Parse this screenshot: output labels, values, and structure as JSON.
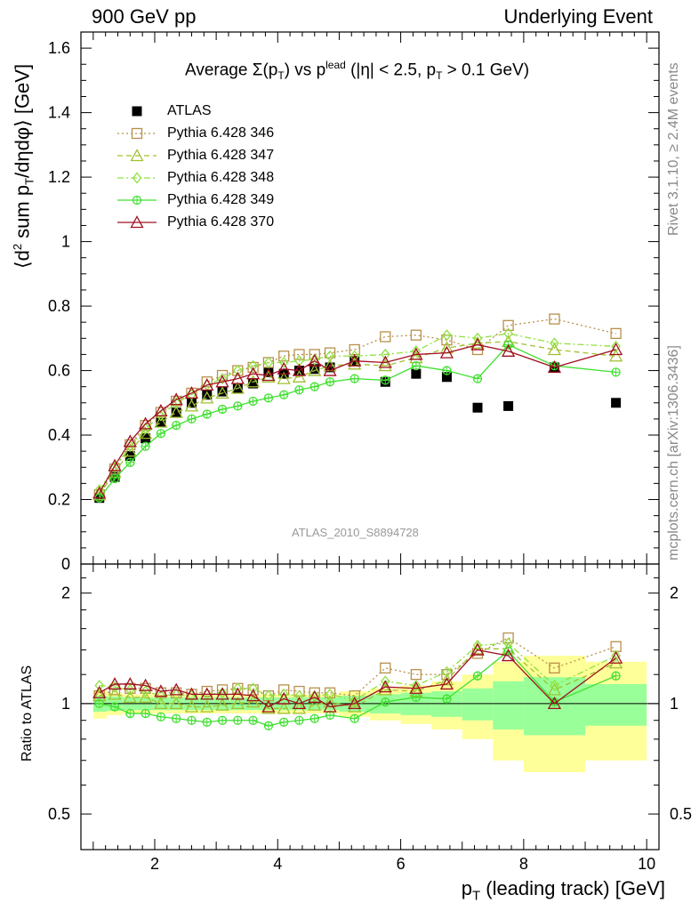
{
  "header": {
    "left": "900 GeV pp",
    "right": "Underlying Event"
  },
  "side_labels": {
    "rivet": "Rivet 3.1.10, ≥ 2.4M events",
    "mcplots": "mcplots.cern.ch [arXiv:1306.3436]"
  },
  "chart_data": [
    {
      "type": "scatter",
      "panel": "main",
      "title": "Average Σ(p_T) vs p_T^lead (|η| < 2.5, p_T > 0.1 GeV)",
      "title_parts": {
        "prefix": "Average ",
        "sigma": "Σ(p",
        "t_sub": "T",
        "mid": ") vs p",
        "lead_sup": "lead",
        "lead_sub": "T",
        "suffix1": " (|η| < 2.5, p",
        "suffix_sub": "T",
        "suffix2": " > 0.1 GeV)"
      },
      "ylabel": "⟨d² sum p_T/dηdφ⟩ [GeV]",
      "ylabel_parts": {
        "pre": "⟨d",
        "sup": "2",
        "mid": " sum p",
        "sub": "T",
        "post": "/dηdφ⟩ [GeV]"
      },
      "ref_label": "ATLAS_2010_S8894728",
      "xlim": [
        0.8,
        10.2
      ],
      "ylim": [
        0,
        1.65
      ],
      "yticks": [
        0,
        0.2,
        0.4,
        0.6,
        0.8,
        1,
        1.2,
        1.4,
        1.6
      ],
      "ytick_labels": [
        "0",
        "0.2",
        "0.4",
        "0.6",
        "0.8",
        "1",
        "1.2",
        "1.4",
        "1.6"
      ],
      "x": [
        1.1,
        1.35,
        1.6,
        1.85,
        2.1,
        2.35,
        2.6,
        2.85,
        3.1,
        3.35,
        3.6,
        3.85,
        4.1,
        4.35,
        4.6,
        4.85,
        5.25,
        5.75,
        6.25,
        6.75,
        7.25,
        7.75,
        8.5,
        9.5
      ],
      "legend_position": "top-left",
      "series": [
        {
          "name": "ATLAS",
          "color": "#000000",
          "marker": "filled-square",
          "line": "none",
          "values": [
            0.205,
            0.27,
            0.335,
            0.39,
            0.44,
            0.47,
            0.5,
            0.525,
            0.535,
            0.545,
            0.56,
            0.595,
            0.59,
            0.6,
            0.605,
            0.61,
            0.63,
            0.565,
            0.59,
            0.58,
            0.485,
            0.49,
            0.61,
            0.5
          ]
        },
        {
          "name": "Pythia 6.428 346",
          "color": "#b8904a",
          "marker": "open-square",
          "line": "dotted",
          "values": [
            0.215,
            0.295,
            0.37,
            0.43,
            0.47,
            0.505,
            0.53,
            0.565,
            0.585,
            0.6,
            0.61,
            0.625,
            0.645,
            0.65,
            0.65,
            0.655,
            0.665,
            0.705,
            0.71,
            0.695,
            0.665,
            0.74,
            0.76,
            0.715
          ]
        },
        {
          "name": "Pythia 6.428 347",
          "color": "#a0c030",
          "marker": "open-triangle",
          "line": "dashed",
          "values": [
            0.215,
            0.285,
            0.35,
            0.405,
            0.44,
            0.47,
            0.49,
            0.515,
            0.53,
            0.545,
            0.565,
            0.58,
            0.575,
            0.58,
            0.6,
            0.615,
            0.62,
            0.615,
            0.64,
            0.67,
            0.685,
            0.69,
            0.665,
            0.645
          ]
        },
        {
          "name": "Pythia 6.428 348",
          "color": "#90e040",
          "marker": "open-diamond",
          "line": "dashdot",
          "values": [
            0.23,
            0.3,
            0.365,
            0.42,
            0.46,
            0.5,
            0.525,
            0.555,
            0.575,
            0.6,
            0.615,
            0.625,
            0.625,
            0.63,
            0.635,
            0.645,
            0.645,
            0.65,
            0.66,
            0.71,
            0.7,
            0.715,
            0.685,
            0.675
          ]
        },
        {
          "name": "Pythia 6.428 349",
          "color": "#40e030",
          "marker": "open-circle-cross",
          "line": "solid",
          "values": [
            0.205,
            0.265,
            0.315,
            0.365,
            0.405,
            0.43,
            0.45,
            0.465,
            0.48,
            0.49,
            0.505,
            0.515,
            0.525,
            0.54,
            0.55,
            0.565,
            0.575,
            0.57,
            0.615,
            0.6,
            0.575,
            0.68,
            0.615,
            0.595
          ]
        },
        {
          "name": "Pythia 6.428 370",
          "color": "#a01020",
          "marker": "open-triangle",
          "line": "solid",
          "values": [
            0.22,
            0.305,
            0.38,
            0.435,
            0.475,
            0.51,
            0.53,
            0.555,
            0.565,
            0.575,
            0.59,
            0.585,
            0.605,
            0.6,
            0.63,
            0.6,
            0.63,
            0.625,
            0.65,
            0.655,
            0.68,
            0.66,
            0.61,
            0.665
          ]
        }
      ]
    },
    {
      "type": "scatter",
      "panel": "ratio",
      "ylabel": "Ratio to ATLAS",
      "xlabel": "p_T (leading track) [GeV]",
      "xlabel_parts": {
        "pre": "p",
        "sub": "T",
        "post": " (leading track) [GeV]"
      },
      "xlim": [
        0.8,
        10.2
      ],
      "ylim": [
        0.4,
        2.4
      ],
      "y_scale": "log",
      "xticks": [
        2,
        4,
        6,
        8,
        10
      ],
      "xtick_labels": [
        "2",
        "4",
        "6",
        "8",
        "10"
      ],
      "yticks": [
        0.5,
        1,
        2
      ],
      "ytick_labels": [
        "0.5",
        "1",
        "2"
      ],
      "bands": {
        "x_edges": [
          1.0,
          1.225,
          1.475,
          1.725,
          1.975,
          2.225,
          2.475,
          2.725,
          2.975,
          3.225,
          3.475,
          3.725,
          3.975,
          4.225,
          4.475,
          4.725,
          5.0,
          5.5,
          6.0,
          6.5,
          7.0,
          7.5,
          8.0,
          9.0,
          10.0
        ],
        "stat_half_width": [
          0.05,
          0.045,
          0.04,
          0.04,
          0.04,
          0.04,
          0.04,
          0.04,
          0.04,
          0.04,
          0.04,
          0.04,
          0.04,
          0.04,
          0.04,
          0.04,
          0.05,
          0.06,
          0.07,
          0.08,
          0.1,
          0.15,
          0.18,
          0.13
        ],
        "total_half_width": [
          0.09,
          0.07,
          0.06,
          0.06,
          0.06,
          0.06,
          0.06,
          0.06,
          0.06,
          0.06,
          0.06,
          0.06,
          0.06,
          0.06,
          0.06,
          0.06,
          0.08,
          0.1,
          0.12,
          0.15,
          0.2,
          0.3,
          0.35,
          0.3
        ],
        "stat_color": "#99ff99",
        "total_color": "#ffff99"
      },
      "series": [
        {
          "name": "Pythia 6.428 346",
          "values": [
            1.05,
            1.09,
            1.1,
            1.1,
            1.07,
            1.07,
            1.06,
            1.08,
            1.09,
            1.1,
            1.09,
            1.05,
            1.09,
            1.08,
            1.07,
            1.07,
            1.05,
            1.25,
            1.2,
            1.2,
            1.37,
            1.51,
            1.25,
            1.43
          ]
        },
        {
          "name": "Pythia 6.428 347",
          "values": [
            1.05,
            1.06,
            1.04,
            1.04,
            1.0,
            1.0,
            0.98,
            0.98,
            0.99,
            1.0,
            1.01,
            0.97,
            0.97,
            0.97,
            0.99,
            1.01,
            0.98,
            1.09,
            1.08,
            1.16,
            1.41,
            1.41,
            1.09,
            1.29
          ]
        },
        {
          "name": "Pythia 6.428 348",
          "values": [
            1.12,
            1.11,
            1.09,
            1.08,
            1.05,
            1.06,
            1.05,
            1.06,
            1.07,
            1.1,
            1.1,
            1.05,
            1.06,
            1.05,
            1.05,
            1.06,
            1.02,
            1.15,
            1.12,
            1.22,
            1.44,
            1.46,
            1.12,
            1.35
          ]
        },
        {
          "name": "Pythia 6.428 349",
          "values": [
            1.0,
            0.98,
            0.94,
            0.94,
            0.92,
            0.91,
            0.9,
            0.89,
            0.9,
            0.9,
            0.9,
            0.87,
            0.89,
            0.9,
            0.91,
            0.93,
            0.91,
            1.01,
            1.04,
            1.03,
            1.19,
            1.39,
            1.01,
            1.19
          ]
        },
        {
          "name": "Pythia 6.428 370",
          "values": [
            1.07,
            1.13,
            1.13,
            1.12,
            1.08,
            1.09,
            1.06,
            1.06,
            1.06,
            1.06,
            1.05,
            0.98,
            1.03,
            1.0,
            1.04,
            0.98,
            1.0,
            1.11,
            1.1,
            1.13,
            1.4,
            1.35,
            1.0,
            1.33
          ]
        }
      ]
    }
  ]
}
